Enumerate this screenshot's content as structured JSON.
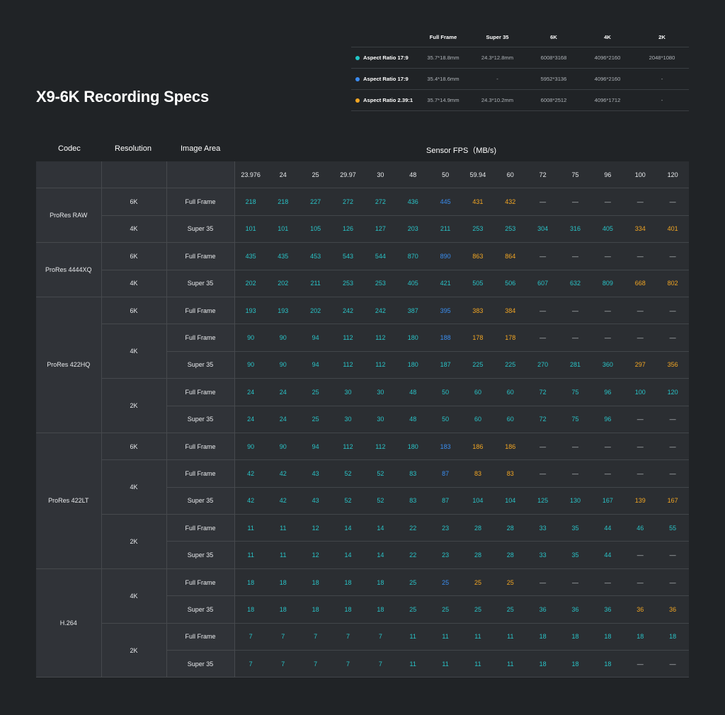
{
  "title": "X9-6K Recording Specs",
  "aspect": {
    "headers": [
      "Full Frame",
      "Super 35",
      "6K",
      "4K",
      "2K"
    ],
    "rows": [
      {
        "label": "Aspect Ratio 17:9",
        "color": "#21c6c6",
        "values": [
          "35.7*18.8mm",
          "24.3*12.8mm",
          "6008*3168",
          "4096*2160",
          "2048*1080"
        ]
      },
      {
        "label": "Aspect Ratio 17:9",
        "color": "#3b8cf2",
        "values": [
          "35.4*18.6mm",
          "-",
          "5952*3136",
          "4096*2160",
          "-"
        ]
      },
      {
        "label": "Aspect Ratio 2.39:1",
        "color": "#f2a623",
        "values": [
          "35.7*14.9mm",
          "24.3*10.2mm",
          "6008*2512",
          "4096*1712",
          "-"
        ]
      }
    ]
  },
  "headers": {
    "codec": "Codec",
    "resolution": "Resolution",
    "image_area": "Image Area",
    "sensor_fps": "Sensor FPS（MB/s)"
  },
  "fps": [
    "23.976",
    "24",
    "25",
    "29.97",
    "30",
    "48",
    "50",
    "59.94",
    "60",
    "72",
    "75",
    "96",
    "100",
    "120"
  ],
  "colors": {
    "teal": "#29c3c7",
    "blue": "#3a8ef0",
    "orange": "#f2a623",
    "dash": "#c5c9cc"
  },
  "rows": [
    {
      "codec": "ProRes RAW",
      "res": "6K",
      "area": "Full Frame",
      "values": [
        "218",
        "218",
        "227",
        "272",
        "272",
        "436",
        "445",
        "431",
        "432",
        "—",
        "—",
        "—",
        "—",
        "—"
      ]
    },
    {
      "res": "4K",
      "area": "Super 35",
      "values": [
        "101",
        "101",
        "105",
        "126",
        "127",
        "203",
        "211",
        "253",
        "253",
        "304",
        "316",
        "405",
        "334",
        "401"
      ]
    },
    {
      "codec": "ProRes 4444XQ",
      "res": "6K",
      "area": "Full Frame",
      "values": [
        "435",
        "435",
        "453",
        "543",
        "544",
        "870",
        "890",
        "863",
        "864",
        "—",
        "—",
        "—",
        "—",
        "—"
      ]
    },
    {
      "res": "4K",
      "area": "Super 35",
      "values": [
        "202",
        "202",
        "211",
        "253",
        "253",
        "405",
        "421",
        "505",
        "506",
        "607",
        "632",
        "809",
        "668",
        "802"
      ]
    },
    {
      "codec": "ProRes 422HQ",
      "res": "6K",
      "area": "Full Frame",
      "values": [
        "193",
        "193",
        "202",
        "242",
        "242",
        "387",
        "395",
        "383",
        "384",
        "—",
        "—",
        "—",
        "—",
        "—"
      ]
    },
    {
      "res": "4K",
      "area": "Full Frame",
      "values": [
        "90",
        "90",
        "94",
        "112",
        "112",
        "180",
        "188",
        "178",
        "178",
        "—",
        "—",
        "—",
        "—",
        "—"
      ]
    },
    {
      "area": "Super 35",
      "values": [
        "90",
        "90",
        "94",
        "112",
        "112",
        "180",
        "187",
        "225",
        "225",
        "270",
        "281",
        "360",
        "297",
        "356"
      ]
    },
    {
      "res": "2K",
      "area": "Full Frame",
      "values": [
        "24",
        "24",
        "25",
        "30",
        "30",
        "48",
        "50",
        "60",
        "60",
        "72",
        "75",
        "96",
        "100",
        "120"
      ]
    },
    {
      "area": "Super 35",
      "values": [
        "24",
        "24",
        "25",
        "30",
        "30",
        "48",
        "50",
        "60",
        "60",
        "72",
        "75",
        "96",
        "—",
        "—"
      ]
    },
    {
      "codec": "ProRes 422LT",
      "res": "6K",
      "area": "Full Frame",
      "values": [
        "90",
        "90",
        "94",
        "112",
        "112",
        "180",
        "183",
        "186",
        "186",
        "—",
        "—",
        "—",
        "—",
        "—"
      ]
    },
    {
      "res": "4K",
      "area": "Full Frame",
      "values": [
        "42",
        "42",
        "43",
        "52",
        "52",
        "83",
        "87",
        "83",
        "83",
        "—",
        "—",
        "—",
        "—",
        "—"
      ]
    },
    {
      "area": "Super 35",
      "values": [
        "42",
        "42",
        "43",
        "52",
        "52",
        "83",
        "87",
        "104",
        "104",
        "125",
        "130",
        "167",
        "139",
        "167"
      ]
    },
    {
      "res": "2K",
      "area": "Full Frame",
      "values": [
        "11",
        "11",
        "12",
        "14",
        "14",
        "22",
        "23",
        "28",
        "28",
        "33",
        "35",
        "44",
        "46",
        "55"
      ]
    },
    {
      "area": "Super 35",
      "values": [
        "11",
        "11",
        "12",
        "14",
        "14",
        "22",
        "23",
        "28",
        "28",
        "33",
        "35",
        "44",
        "—",
        "—"
      ]
    },
    {
      "codec": "H.264",
      "res": "4K",
      "area": "Full Frame",
      "values": [
        "18",
        "18",
        "18",
        "18",
        "18",
        "25",
        "25",
        "25",
        "25",
        "—",
        "—",
        "—",
        "—",
        "—"
      ]
    },
    {
      "area": "Super 35",
      "values": [
        "18",
        "18",
        "18",
        "18",
        "18",
        "25",
        "25",
        "25",
        "25",
        "36",
        "36",
        "36",
        "36",
        "36"
      ]
    },
    {
      "res": "2K",
      "area": "Full Frame",
      "values": [
        "7",
        "7",
        "7",
        "7",
        "7",
        "11",
        "11",
        "11",
        "11",
        "18",
        "18",
        "18",
        "18",
        "18"
      ]
    },
    {
      "area": "Super 35",
      "values": [
        "7",
        "7",
        "7",
        "7",
        "7",
        "11",
        "11",
        "11",
        "11",
        "18",
        "18",
        "18",
        "—",
        "—"
      ]
    }
  ]
}
